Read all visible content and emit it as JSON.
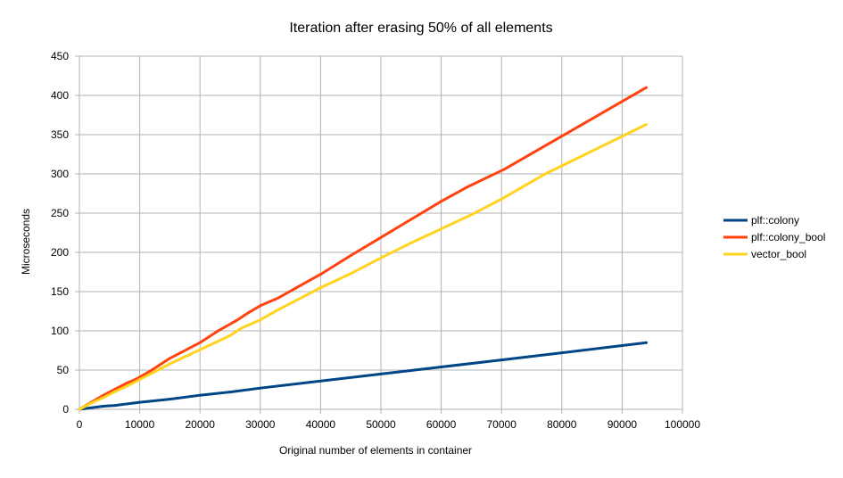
{
  "chart_data": {
    "type": "line",
    "title": "Iteration after erasing 50% of all elements",
    "xlabel": "Original number of elements in container",
    "ylabel": "Microseconds",
    "xlim": [
      0,
      100000
    ],
    "ylim": [
      0,
      450
    ],
    "x_ticks": [
      0,
      10000,
      20000,
      30000,
      40000,
      50000,
      60000,
      70000,
      80000,
      90000,
      100000
    ],
    "y_ticks": [
      0,
      50,
      100,
      150,
      200,
      250,
      300,
      350,
      400,
      450
    ],
    "grid": true,
    "legend_position": "right",
    "series": [
      {
        "name": "plf::colony",
        "color": "#004586",
        "x": [
          0,
          1000,
          2000,
          3000,
          4000,
          5000,
          6000,
          7000,
          8000,
          9000,
          10000,
          15000,
          20000,
          25000,
          30000,
          40000,
          50000,
          60000,
          70000,
          80000,
          94000
        ],
        "y": [
          0,
          1,
          2,
          3,
          4,
          4.5,
          5,
          6,
          7,
          8,
          9,
          13,
          18,
          22,
          27,
          36,
          45,
          54,
          63,
          72,
          85
        ]
      },
      {
        "name": "plf::colony_bool",
        "color": "#ff420e",
        "x": [
          0,
          2000,
          4000,
          6000,
          8000,
          9000,
          10000,
          12000,
          15000,
          17000,
          20000,
          23000,
          26000,
          28000,
          30000,
          33000,
          36000,
          40000,
          45000,
          50000,
          55000,
          60000,
          64500,
          70500,
          94000
        ],
        "y": [
          0,
          9,
          18,
          26,
          34,
          37,
          41,
          50,
          65,
          73,
          85,
          100,
          113,
          123,
          132,
          142,
          155,
          172,
          196,
          219,
          242,
          265,
          284,
          306,
          410
        ]
      },
      {
        "name": "vector_bool",
        "color": "#ffd320",
        "x": [
          0,
          2000,
          4000,
          6000,
          8000,
          10000,
          15000,
          20000,
          25000,
          27000,
          30000,
          33000,
          36000,
          40000,
          45000,
          50000,
          55000,
          60000,
          65000,
          70000,
          77000,
          94000
        ],
        "y": [
          0,
          8,
          15,
          23,
          30,
          38,
          58,
          76,
          94,
          104,
          114,
          127,
          139,
          155,
          173,
          193,
          212,
          230,
          248,
          268,
          299,
          363
        ]
      }
    ]
  }
}
